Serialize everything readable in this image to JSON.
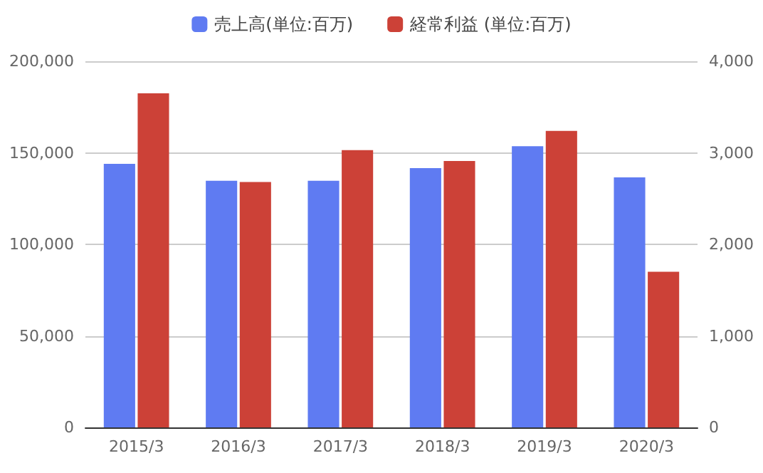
{
  "chart_data": {
    "type": "bar",
    "categories": [
      "2015/3",
      "2016/3",
      "2017/3",
      "2018/3",
      "2019/3",
      "2020/3"
    ],
    "series": [
      {
        "name": "売上高(単位:百万)",
        "color": "#5f7bf2",
        "values": [
          144000,
          134700,
          134700,
          141600,
          153600,
          136600
        ]
      },
      {
        "name": "経常利益 (単位:百万)",
        "color": "#cc4137",
        "axis": "y2",
        "values": [
          3650,
          2680,
          3030,
          2910,
          3240,
          1700
        ]
      }
    ],
    "ylim": [
      0,
      200000
    ],
    "yticks": [
      0,
      {
        "value": 50000,
        "label": "50,000"
      },
      {
        "value": 100000,
        "label": "100,000"
      },
      {
        "value": 150000,
        "label": "150,000"
      },
      {
        "value": 200000,
        "label": "200,000"
      }
    ],
    "y2lim": [
      0,
      4000
    ],
    "y2ticks": [
      0,
      {
        "value": 1000,
        "label": "1,000"
      },
      {
        "value": 2000,
        "label": "2,000"
      },
      {
        "value": 3000,
        "label": "3,000"
      },
      {
        "value": 4000,
        "label": "4,000"
      }
    ],
    "grid": "y",
    "legend": "top"
  }
}
